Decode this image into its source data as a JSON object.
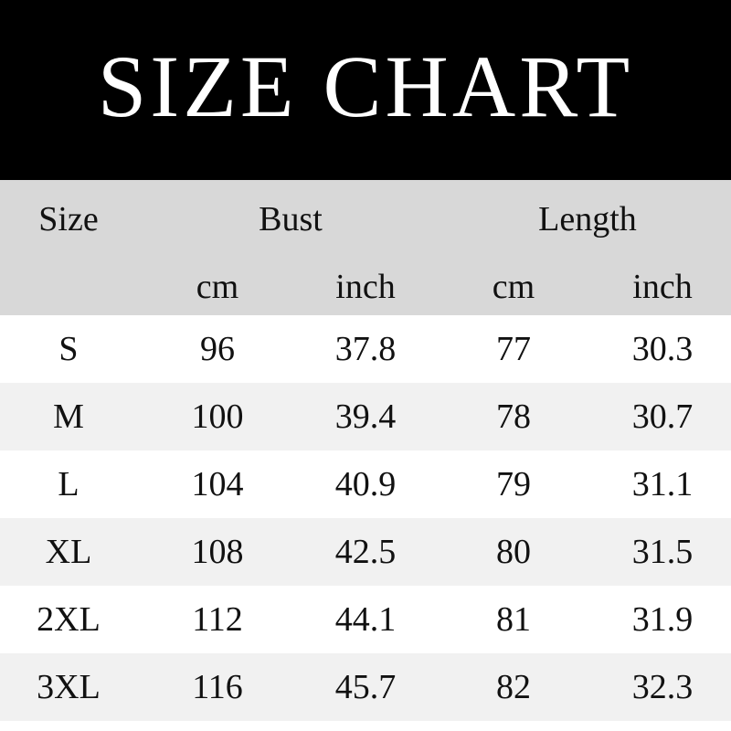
{
  "title": "SIZE CHART",
  "header": {
    "size": "Size",
    "bust": "Bust",
    "length": "Length",
    "units": [
      "cm",
      "inch",
      "cm",
      "inch"
    ]
  },
  "rows": [
    [
      "S",
      "96",
      "37.8",
      "77",
      "30.3"
    ],
    [
      "M",
      "100",
      "39.4",
      "78",
      "30.7"
    ],
    [
      "L",
      "104",
      "40.9",
      "79",
      "31.1"
    ],
    [
      "XL",
      "108",
      "42.5",
      "80",
      "31.5"
    ],
    [
      "2XL",
      "112",
      "44.1",
      "81",
      "31.9"
    ],
    [
      "3XL",
      "116",
      "45.7",
      "82",
      "32.3"
    ]
  ]
}
